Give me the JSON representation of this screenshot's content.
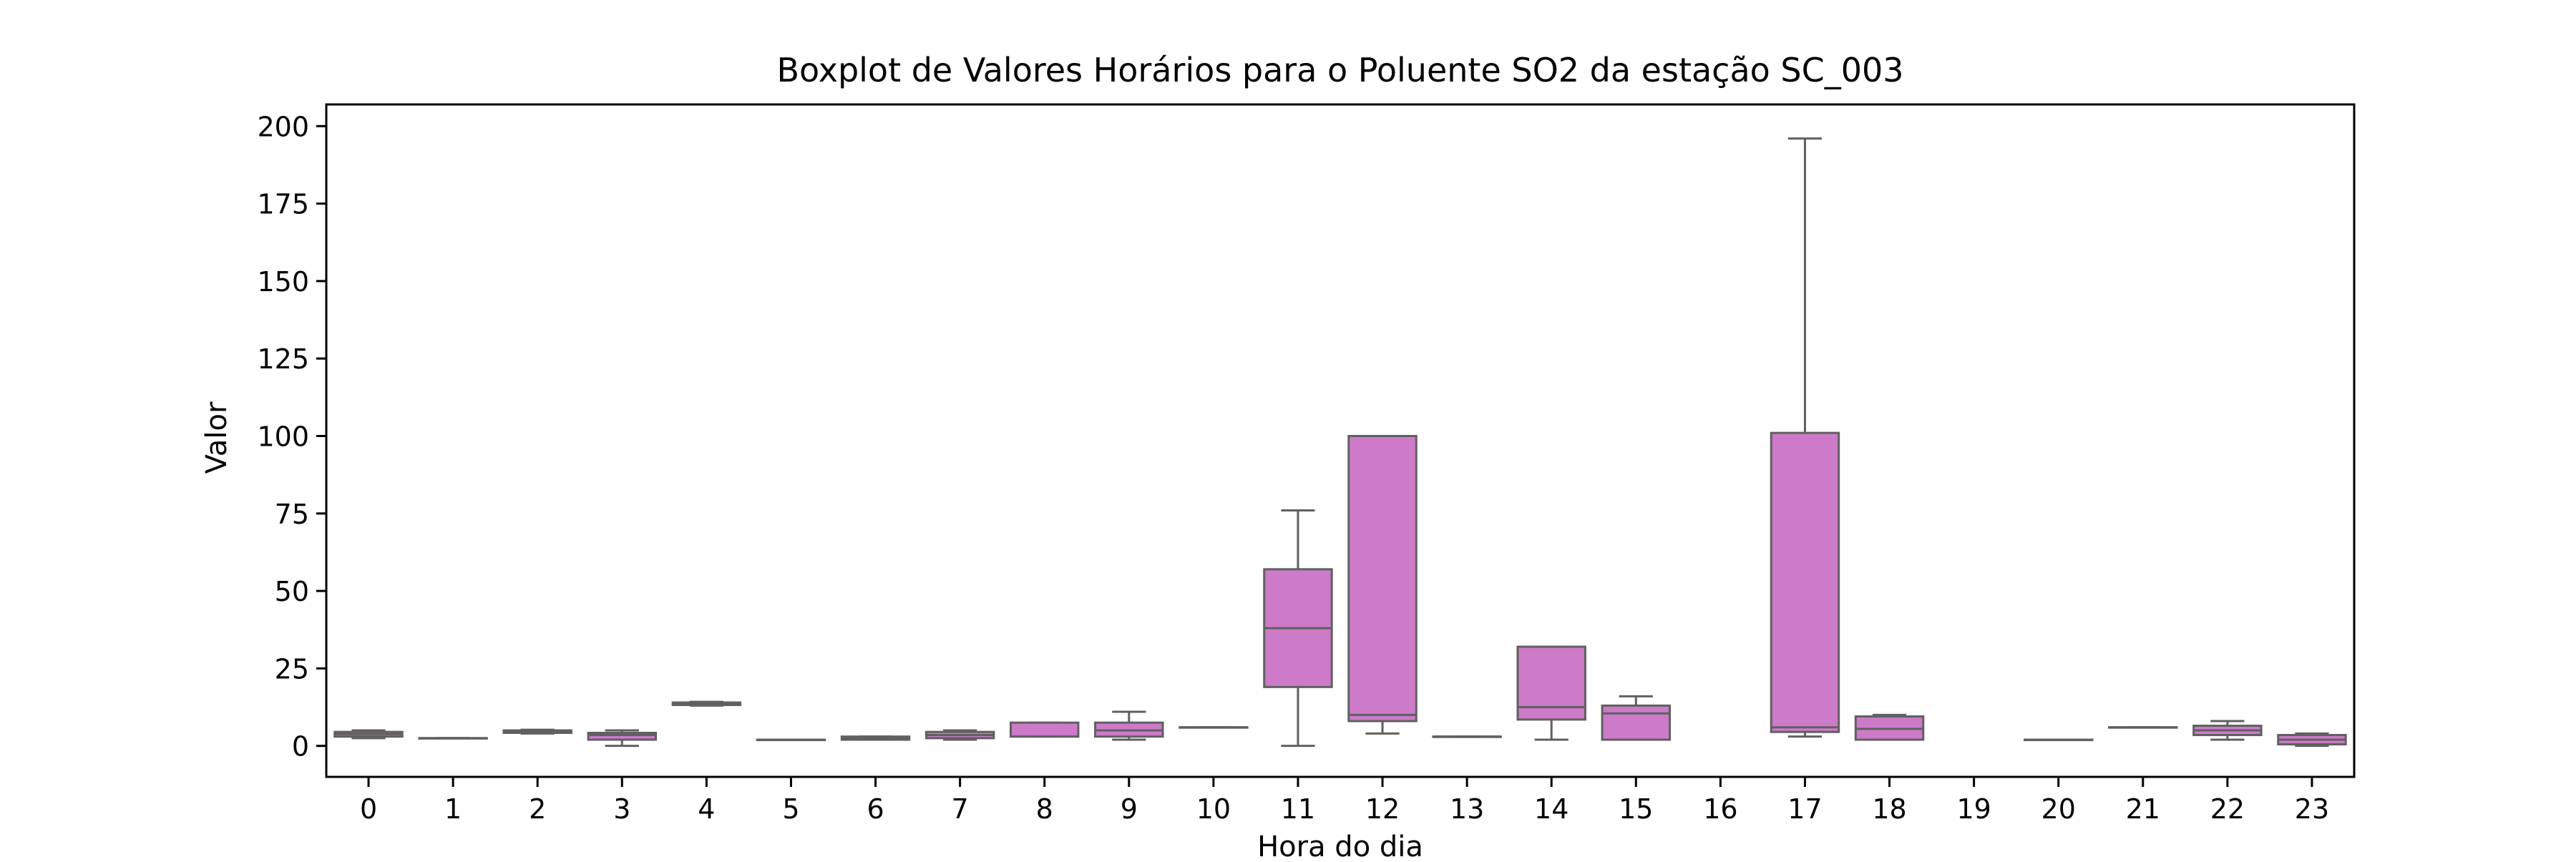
{
  "chart_data": {
    "type": "boxplot",
    "title": "Boxplot de Valores Horários para o Poluente SO2 da estação SC_003",
    "xlabel": "Hora do dia",
    "ylabel": "Valor",
    "categories": [
      "0",
      "1",
      "2",
      "3",
      "4",
      "5",
      "6",
      "7",
      "8",
      "9",
      "10",
      "11",
      "12",
      "13",
      "14",
      "15",
      "16",
      "17",
      "18",
      "19",
      "20",
      "21",
      "22",
      "23"
    ],
    "ylim": [
      -10,
      207
    ],
    "yticks": [
      0,
      25,
      50,
      75,
      100,
      125,
      150,
      175,
      200
    ],
    "grid": false,
    "box_color": "#cd7ac9",
    "line_color": "#606060",
    "boxes": [
      {
        "hour": "0",
        "whislo": 2.5,
        "q1": 3.0,
        "med": 3.8,
        "q3": 4.5,
        "whishi": 5.0
      },
      {
        "hour": "1",
        "whislo": 2.5,
        "q1": 2.5,
        "med": 2.5,
        "q3": 2.5,
        "whishi": 2.5
      },
      {
        "hour": "2",
        "whislo": 4.0,
        "q1": 4.2,
        "med": 4.6,
        "q3": 5.0,
        "whishi": 5.2
      },
      {
        "hour": "3",
        "whislo": 0.0,
        "q1": 2.0,
        "med": 3.5,
        "q3": 4.2,
        "whishi": 5.0
      },
      {
        "hour": "4",
        "whislo": 13.0,
        "q1": 13.2,
        "med": 13.5,
        "q3": 14.0,
        "whishi": 14.2
      },
      {
        "hour": "5",
        "whislo": 2.0,
        "q1": 2.0,
        "med": 2.0,
        "q3": 2.0,
        "whishi": 2.0
      },
      {
        "hour": "6",
        "whislo": 2.0,
        "q1": 2.0,
        "med": 2.5,
        "q3": 3.0,
        "whishi": 3.0
      },
      {
        "hour": "7",
        "whislo": 2.0,
        "q1": 2.5,
        "med": 3.5,
        "q3": 4.5,
        "whishi": 5.0
      },
      {
        "hour": "8",
        "whislo": 3.0,
        "q1": 3.0,
        "med": 3.0,
        "q3": 7.5,
        "whishi": 7.5
      },
      {
        "hour": "9",
        "whislo": 2.0,
        "q1": 3.0,
        "med": 5.0,
        "q3": 7.5,
        "whishi": 11.0
      },
      {
        "hour": "10",
        "whislo": 6.0,
        "q1": 6.0,
        "med": 6.0,
        "q3": 6.0,
        "whishi": 6.0
      },
      {
        "hour": "11",
        "whislo": 0.0,
        "q1": 19.0,
        "med": 38.0,
        "q3": 57.0,
        "whishi": 76.0
      },
      {
        "hour": "12",
        "whislo": 4.0,
        "q1": 8.0,
        "med": 10.0,
        "q3": 100.0,
        "whishi": 100.0
      },
      {
        "hour": "13",
        "whislo": 3.0,
        "q1": 3.0,
        "med": 3.0,
        "q3": 3.0,
        "whishi": 3.0
      },
      {
        "hour": "14",
        "whislo": 2.0,
        "q1": 8.5,
        "med": 12.5,
        "q3": 32.0,
        "whishi": 32.0
      },
      {
        "hour": "15",
        "whislo": 2.0,
        "q1": 2.0,
        "med": 10.5,
        "q3": 13.0,
        "whishi": 16.0
      },
      {
        "hour": "17",
        "whislo": 3.0,
        "q1": 4.5,
        "med": 6.0,
        "q3": 101.0,
        "whishi": 196.0
      },
      {
        "hour": "18",
        "whislo": 2.0,
        "q1": 2.0,
        "med": 5.5,
        "q3": 9.5,
        "whishi": 10.0
      },
      {
        "hour": "20",
        "whislo": 2.0,
        "q1": 2.0,
        "med": 2.0,
        "q3": 2.0,
        "whishi": 2.0
      },
      {
        "hour": "21",
        "whislo": 6.0,
        "q1": 6.0,
        "med": 6.0,
        "q3": 6.0,
        "whishi": 6.0
      },
      {
        "hour": "22",
        "whislo": 2.0,
        "q1": 3.5,
        "med": 5.0,
        "q3": 6.5,
        "whishi": 8.0
      },
      {
        "hour": "23",
        "whislo": 0.0,
        "q1": 0.5,
        "med": 2.0,
        "q3": 3.5,
        "whishi": 4.0
      }
    ]
  }
}
